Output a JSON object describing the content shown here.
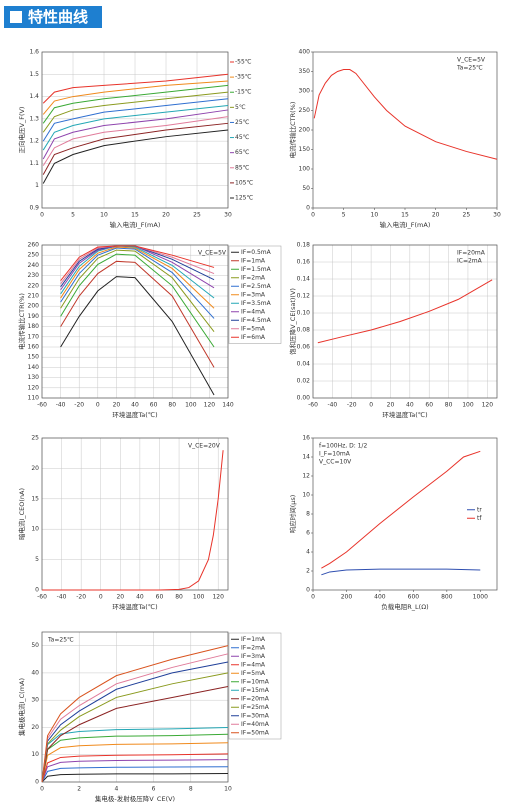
{
  "header": {
    "title": "特性曲线"
  },
  "chart_data": [
    {
      "type": "line",
      "xlabel": "输入电流I_F(mA)",
      "ylabel": "正向电压V_F(V)",
      "xlim": [
        0,
        30
      ],
      "ylim": [
        0.9,
        1.6
      ],
      "xticks": [
        0,
        5,
        10,
        15,
        20,
        25,
        30
      ],
      "yticks": [
        0.9,
        1,
        1.1,
        1.2,
        1.3,
        1.4,
        1.5,
        1.6
      ],
      "grid": true,
      "legend": "line-end",
      "series": [
        {
          "name": "-55℃",
          "color": "#e8332a",
          "x": [
            0.2,
            2,
            5,
            10,
            20,
            30
          ],
          "values": [
            1.37,
            1.42,
            1.44,
            1.45,
            1.47,
            1.5
          ]
        },
        {
          "name": "-35℃",
          "color": "#f08a1c",
          "x": [
            0.2,
            2,
            5,
            10,
            20,
            30
          ],
          "values": [
            1.32,
            1.38,
            1.4,
            1.42,
            1.45,
            1.47
          ]
        },
        {
          "name": "-15℃",
          "color": "#3aa935",
          "x": [
            0.2,
            2,
            5,
            10,
            20,
            30
          ],
          "values": [
            1.28,
            1.35,
            1.37,
            1.39,
            1.42,
            1.45
          ]
        },
        {
          "name": "5℃",
          "color": "#8a9a1e",
          "x": [
            0.2,
            2,
            5,
            10,
            20,
            30
          ],
          "values": [
            1.24,
            1.31,
            1.34,
            1.36,
            1.39,
            1.42
          ]
        },
        {
          "name": "25℃",
          "color": "#2f6fd0",
          "x": [
            0.2,
            2,
            5,
            10,
            20,
            30
          ],
          "values": [
            1.2,
            1.28,
            1.3,
            1.33,
            1.36,
            1.39
          ]
        },
        {
          "name": "45℃",
          "color": "#23a7b5",
          "x": [
            0.2,
            2,
            5,
            10,
            20,
            30
          ],
          "values": [
            1.16,
            1.24,
            1.27,
            1.3,
            1.33,
            1.36
          ]
        },
        {
          "name": "65℃",
          "color": "#8e44ad",
          "x": [
            0.2,
            2,
            5,
            10,
            20,
            30
          ],
          "values": [
            1.12,
            1.21,
            1.24,
            1.27,
            1.3,
            1.34
          ]
        },
        {
          "name": "85℃",
          "color": "#e07b9a",
          "x": [
            0.2,
            2,
            5,
            10,
            20,
            30
          ],
          "values": [
            1.09,
            1.17,
            1.21,
            1.24,
            1.27,
            1.31
          ]
        },
        {
          "name": "105℃",
          "color": "#8b2323",
          "x": [
            0.2,
            2,
            5,
            10,
            20,
            30
          ],
          "values": [
            1.05,
            1.14,
            1.17,
            1.21,
            1.25,
            1.28
          ]
        },
        {
          "name": "125℃",
          "color": "#222222",
          "x": [
            0.2,
            2,
            5,
            10,
            20,
            30
          ],
          "values": [
            1.01,
            1.1,
            1.14,
            1.18,
            1.22,
            1.25
          ]
        }
      ]
    },
    {
      "type": "line",
      "xlabel": "输入电流I_F(mA)",
      "ylabel": "电流传输比CTR(%)",
      "xlim": [
        0,
        30
      ],
      "ylim": [
        0,
        400
      ],
      "xticks": [
        0,
        5,
        10,
        15,
        20,
        25,
        30
      ],
      "yticks": [
        0,
        50,
        100,
        150,
        200,
        250,
        300,
        350,
        400
      ],
      "grid": false,
      "annotations": [
        "V_CE=5V",
        "Ta=25℃"
      ],
      "annotation_loc": "upper right",
      "series": [
        {
          "name": "CTR",
          "color": "#e8332a",
          "x": [
            0.2,
            1,
            2,
            3,
            4,
            5,
            6,
            7,
            8,
            10,
            12,
            15,
            20,
            25,
            30
          ],
          "values": [
            230,
            290,
            320,
            340,
            350,
            355,
            355,
            345,
            325,
            285,
            250,
            210,
            170,
            145,
            125
          ]
        }
      ]
    },
    {
      "type": "line",
      "xlabel": "环境温度Ta(℃)",
      "ylabel": "电流传输比CTR(%)",
      "xlim": [
        -60,
        140
      ],
      "ylim": [
        110,
        260
      ],
      "xticks": [
        -60,
        -40,
        -20,
        0,
        20,
        40,
        60,
        80,
        100,
        120,
        140
      ],
      "yticks": [
        110,
        120,
        130,
        140,
        150,
        160,
        170,
        180,
        190,
        200,
        210,
        220,
        230,
        240,
        250,
        260
      ],
      "grid": true,
      "annotations": [
        "V_CE=5V"
      ],
      "annotation_loc": "upper right",
      "legend": "right",
      "series": [
        {
          "name": "IF=0.5mA",
          "color": "#222222",
          "x": [
            -40,
            -20,
            0,
            20,
            40,
            80,
            125
          ],
          "values": [
            160,
            190,
            215,
            229,
            228,
            185,
            113
          ]
        },
        {
          "name": "IF=1mA",
          "color": "#c0392b",
          "x": [
            -40,
            -20,
            0,
            20,
            40,
            80,
            125
          ],
          "values": [
            180,
            210,
            232,
            244,
            243,
            210,
            140
          ]
        },
        {
          "name": "IF=1.5mA",
          "color": "#3aa935",
          "x": [
            -40,
            -20,
            0,
            20,
            40,
            80,
            125
          ],
          "values": [
            190,
            220,
            241,
            251,
            250,
            220,
            160
          ]
        },
        {
          "name": "IF=2mA",
          "color": "#8a9a1e",
          "x": [
            -40,
            -20,
            0,
            20,
            40,
            80,
            125
          ],
          "values": [
            198,
            227,
            247,
            255,
            254,
            228,
            175
          ]
        },
        {
          "name": "IF=2.5mA",
          "color": "#2f6fd0",
          "x": [
            -40,
            -20,
            0,
            20,
            40,
            80,
            125
          ],
          "values": [
            204,
            232,
            250,
            257,
            256,
            233,
            188
          ]
        },
        {
          "name": "IF=3mA",
          "color": "#f08a1c",
          "x": [
            -40,
            -20,
            0,
            20,
            40,
            80,
            125
          ],
          "values": [
            208,
            236,
            252,
            258,
            257,
            237,
            198
          ]
        },
        {
          "name": "IF=3.5mA",
          "color": "#23a7b5",
          "x": [
            -40,
            -20,
            0,
            20,
            40,
            80,
            125
          ],
          "values": [
            212,
            239,
            254,
            259,
            258,
            240,
            208
          ]
        },
        {
          "name": "IF=4mA",
          "color": "#8e44ad",
          "x": [
            -40,
            -20,
            0,
            20,
            40,
            80,
            125
          ],
          "values": [
            216,
            242,
            255,
            259,
            259,
            243,
            218
          ]
        },
        {
          "name": "IF=4.5mA",
          "color": "#1f3f99",
          "x": [
            -40,
            -20,
            0,
            20,
            40,
            80,
            125
          ],
          "values": [
            219,
            244,
            256,
            259,
            259,
            246,
            226
          ]
        },
        {
          "name": "IF=5mA",
          "color": "#e07b9a",
          "x": [
            -40,
            -20,
            0,
            20,
            40,
            80,
            125
          ],
          "values": [
            222,
            246,
            257,
            259,
            259,
            248,
            232
          ]
        },
        {
          "name": "IF=6mA",
          "color": "#e8332a",
          "x": [
            -40,
            -20,
            0,
            20,
            40,
            80,
            125
          ],
          "values": [
            225,
            248,
            258,
            259,
            259,
            250,
            238
          ]
        }
      ]
    },
    {
      "type": "line",
      "xlabel": "环境温度Ta(℃)",
      "ylabel": "饱和压降V_CE(sat)(V)",
      "xlim": [
        -60,
        130
      ],
      "ylim": [
        0,
        0.18
      ],
      "xticks": [
        -60,
        -40,
        -20,
        0,
        20,
        40,
        60,
        80,
        100,
        120
      ],
      "yticks": [
        {
          "value": 0,
          "label": "0.00"
        },
        0.02,
        0.04,
        0.06,
        0.08,
        {
          "value": 0.1,
          "label": "0.10"
        },
        0.12,
        0.14,
        0.16,
        0.18
      ],
      "grid": true,
      "annotations": [
        "IF=20mA",
        "IC=2mA"
      ],
      "annotation_loc": "upper right",
      "series": [
        {
          "name": "VCE(sat)",
          "color": "#e8332a",
          "x": [
            -55,
            -30,
            0,
            30,
            60,
            90,
            125
          ],
          "values": [
            0.065,
            0.072,
            0.08,
            0.09,
            0.102,
            0.116,
            0.139
          ]
        }
      ]
    },
    {
      "type": "line",
      "xlabel": "环境温度Ta(℃)",
      "ylabel": "暗电流I_CEO(nA)",
      "xlim": [
        -60,
        130
      ],
      "ylim": [
        0,
        25
      ],
      "xticks": [
        -60,
        -40,
        -20,
        0,
        20,
        40,
        60,
        80,
        100,
        120
      ],
      "yticks": [
        0,
        5,
        10,
        15,
        20,
        25
      ],
      "grid": true,
      "annotations": [
        "V_CE=20V"
      ],
      "annotation_loc": "upper right",
      "series": [
        {
          "name": "ICEO",
          "color": "#e8332a",
          "x": [
            -60,
            0,
            60,
            80,
            90,
            100,
            110,
            115,
            120,
            125
          ],
          "values": [
            0,
            0,
            0,
            0.1,
            0.4,
            1.5,
            5,
            9,
            15,
            23
          ]
        }
      ]
    },
    {
      "type": "line",
      "xlabel": "负载电阻R_L(Ω)",
      "ylabel": "响应时间(μs)",
      "xlim": [
        0,
        1100
      ],
      "ylim": [
        0,
        16
      ],
      "xticks": [
        0,
        200,
        400,
        600,
        800,
        1000
      ],
      "yticks": [
        0,
        2,
        4,
        6,
        8,
        10,
        12,
        14,
        16
      ],
      "grid": false,
      "annotations": [
        "f=100Hz, D: 1/2",
        "I_F=10mA",
        "V_CC=10V"
      ],
      "annotation_loc": "upper left",
      "legend": "center right",
      "series": [
        {
          "name": "tr",
          "color": "#2f4fb0",
          "x": [
            50,
            100,
            200,
            400,
            600,
            800,
            1000
          ],
          "values": [
            1.6,
            1.9,
            2.1,
            2.2,
            2.2,
            2.2,
            2.1
          ]
        },
        {
          "name": "tf",
          "color": "#e8332a",
          "x": [
            50,
            100,
            200,
            400,
            600,
            800,
            900,
            1000
          ],
          "values": [
            2.3,
            2.8,
            4,
            7,
            9.8,
            12.5,
            14,
            14.6
          ]
        }
      ]
    },
    {
      "type": "line",
      "xlabel": "集电极-发射极压降V_CE(V)",
      "ylabel": "集电极电流I_C(mA)",
      "xlim": [
        0,
        10
      ],
      "ylim": [
        0,
        55
      ],
      "xticks": [
        0,
        2,
        4,
        6,
        8,
        10
      ],
      "yticks": [
        0,
        10,
        20,
        30,
        40,
        50
      ],
      "grid": true,
      "annotations": [
        "Ta=25℃"
      ],
      "annotation_loc": "upper left",
      "legend": "right",
      "series": [
        {
          "name": "IF=1mA",
          "color": "#222222",
          "x": [
            0,
            0.3,
            1,
            2,
            4,
            7,
            10
          ],
          "values": [
            0,
            2.1,
            2.7,
            2.85,
            3,
            3,
            3.1
          ]
        },
        {
          "name": "IF=2mA",
          "color": "#2f6fd0",
          "x": [
            0,
            0.3,
            1,
            2,
            4,
            7,
            10
          ],
          "values": [
            0,
            3.9,
            5,
            5.2,
            5.4,
            5.5,
            5.6
          ]
        },
        {
          "name": "IF=3mA",
          "color": "#8e44ad",
          "x": [
            0,
            0.3,
            1,
            2,
            4,
            7,
            10
          ],
          "values": [
            0,
            5.6,
            7.2,
            7.6,
            7.9,
            8,
            8.2
          ]
        },
        {
          "name": "IF=4mA",
          "color": "#e8332a",
          "x": [
            0,
            0.3,
            1,
            2,
            4,
            7,
            10
          ],
          "values": [
            0,
            7,
            9,
            9.5,
            9.8,
            10,
            10.3
          ]
        },
        {
          "name": "IF=5mA",
          "color": "#f08a1c",
          "x": [
            0,
            0.3,
            1,
            2,
            4,
            7,
            10
          ],
          "values": [
            0,
            9.8,
            12.6,
            13.3,
            13.8,
            14,
            14.4
          ]
        },
        {
          "name": "IF=10mA",
          "color": "#3aa935",
          "x": [
            0,
            0.3,
            1,
            2,
            4,
            7,
            10
          ],
          "values": [
            0,
            11.9,
            15.3,
            16.2,
            16.8,
            17,
            17.5
          ]
        },
        {
          "name": "IF=15mA",
          "color": "#23a7b5",
          "x": [
            0,
            0.3,
            1,
            2,
            4,
            7,
            10
          ],
          "values": [
            0,
            13.7,
            17.6,
            18.5,
            19.2,
            19.5,
            20
          ]
        },
        {
          "name": "IF=20mA",
          "color": "#8b2323",
          "x": [
            0,
            0.3,
            1,
            2,
            4,
            7,
            10
          ],
          "values": [
            0,
            12,
            17,
            21,
            27,
            31,
            35
          ]
        },
        {
          "name": "IF=25mA",
          "color": "#8a9a1e",
          "x": [
            0,
            0.3,
            1,
            2,
            4,
            7,
            10
          ],
          "values": [
            0,
            14,
            19,
            24,
            31,
            36,
            40
          ]
        },
        {
          "name": "IF=30mA",
          "color": "#1f3f99",
          "x": [
            0,
            0.3,
            1,
            2,
            4,
            7,
            10
          ],
          "values": [
            0,
            15,
            21,
            26,
            34,
            40,
            44
          ]
        },
        {
          "name": "IF=40mA",
          "color": "#e07b9a",
          "x": [
            0,
            0.3,
            1,
            2,
            4,
            7,
            10
          ],
          "values": [
            0,
            16,
            23,
            28,
            36,
            42,
            47
          ]
        },
        {
          "name": "IF=50mA",
          "color": "#d9531e",
          "x": [
            0,
            0.3,
            1,
            2,
            4,
            7,
            10
          ],
          "values": [
            0,
            17,
            25,
            31,
            39,
            45,
            50
          ]
        }
      ]
    }
  ]
}
